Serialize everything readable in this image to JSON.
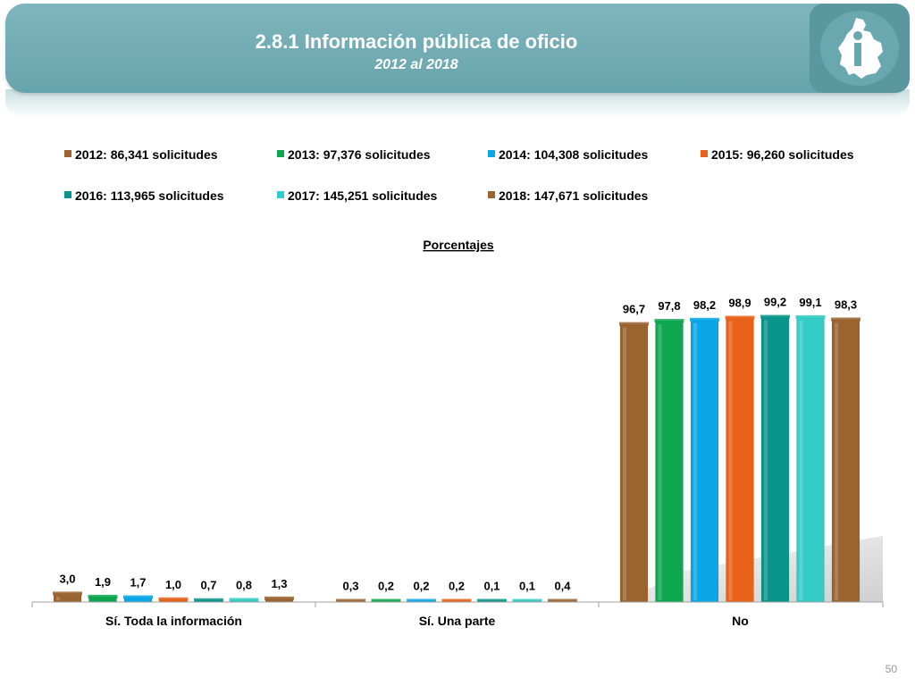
{
  "header": {
    "title": "2.8.1 Información pública de oficio",
    "subtitle": "2012 al 2018"
  },
  "page_number": "50",
  "chart_data": {
    "type": "bar",
    "title": "Porcentajes",
    "categories": [
      "Sí. Toda la información",
      "Sí. Una parte",
      "No"
    ],
    "series": [
      {
        "name": "2012: 86,341 solicitudes",
        "values": [
          3.0,
          0.3,
          96.7
        ],
        "labels": [
          "3,0",
          "0,3",
          "96,7"
        ],
        "color": "#9a6430"
      },
      {
        "name": "2013: 97,376 solicitudes",
        "values": [
          1.9,
          0.2,
          97.8
        ],
        "labels": [
          "1,9",
          "0,2",
          "97,8"
        ],
        "color": "#0ea750"
      },
      {
        "name": "2014: 104,308 solicitudes",
        "values": [
          1.7,
          0.2,
          98.2
        ],
        "labels": [
          "1,7",
          "0,2",
          "98,2"
        ],
        "color": "#0aa6e6"
      },
      {
        "name": "2015: 96,260 solicitudes",
        "values": [
          1.0,
          0.2,
          98.9
        ],
        "labels": [
          "1,0",
          "0,2",
          "98,9"
        ],
        "color": "#e8621a"
      },
      {
        "name": "2016: 113,965 solicitudes",
        "values": [
          0.7,
          0.1,
          99.2
        ],
        "labels": [
          "0,7",
          "0,1",
          "99,2"
        ],
        "color": "#0a958a"
      },
      {
        "name": "2017: 145,251 solicitudes",
        "values": [
          0.8,
          0.1,
          99.1
        ],
        "labels": [
          "0,8",
          "0,1",
          "99,1"
        ],
        "color": "#35cbc6"
      },
      {
        "name": "2018: 147,671 solicitudes",
        "values": [
          1.3,
          0.4,
          98.3
        ],
        "labels": [
          "1,3",
          "0,4",
          "98,3"
        ],
        "color": "#9a6430"
      }
    ],
    "ylim": [
      0,
      100
    ],
    "grid": false,
    "legend_position": "top"
  }
}
